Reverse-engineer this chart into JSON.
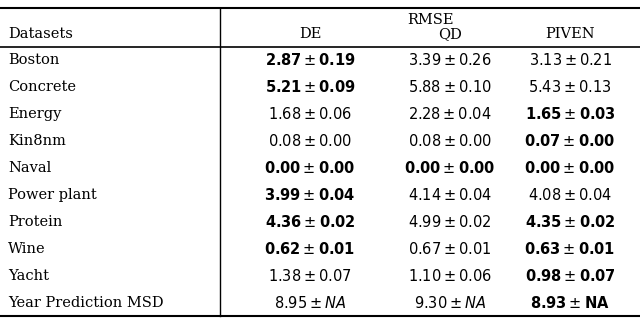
{
  "title": "RMSE",
  "rows": [
    {
      "dataset": "Boston",
      "de": "2.87",
      "de_std": "0.19",
      "de_bold": true,
      "qd": "3.39",
      "qd_std": "0.26",
      "qd_bold": false,
      "piven": "3.13",
      "piven_std": "0.21",
      "piven_bold": false
    },
    {
      "dataset": "Concrete",
      "de": "5.21",
      "de_std": "0.09",
      "de_bold": true,
      "qd": "5.88",
      "qd_std": "0.10",
      "qd_bold": false,
      "piven": "5.43",
      "piven_std": "0.13",
      "piven_bold": false
    },
    {
      "dataset": "Energy",
      "de": "1.68",
      "de_std": "0.06",
      "de_bold": false,
      "qd": "2.28",
      "qd_std": "0.04",
      "qd_bold": false,
      "piven": "1.65",
      "piven_std": "0.03",
      "piven_bold": true
    },
    {
      "dataset": "Kin8nm",
      "de": "0.08",
      "de_std": "0.00",
      "de_bold": false,
      "qd": "0.08",
      "qd_std": "0.00",
      "qd_bold": false,
      "piven": "0.07",
      "piven_std": "0.00",
      "piven_bold": true
    },
    {
      "dataset": "Naval",
      "de": "0.00",
      "de_std": "0.00",
      "de_bold": true,
      "qd": "0.00",
      "qd_std": "0.00",
      "qd_bold": true,
      "piven": "0.00",
      "piven_std": "0.00",
      "piven_bold": true
    },
    {
      "dataset": "Power plant",
      "de": "3.99",
      "de_std": "0.04",
      "de_bold": true,
      "qd": "4.14",
      "qd_std": "0.04",
      "qd_bold": false,
      "piven": "4.08",
      "piven_std": "0.04",
      "piven_bold": false
    },
    {
      "dataset": "Protein",
      "de": "4.36",
      "de_std": "0.02",
      "de_bold": true,
      "qd": "4.99",
      "qd_std": "0.02",
      "qd_bold": false,
      "piven": "4.35",
      "piven_std": "0.02",
      "piven_bold": true
    },
    {
      "dataset": "Wine",
      "de": "0.62",
      "de_std": "0.01",
      "de_bold": true,
      "qd": "0.67",
      "qd_std": "0.01",
      "qd_bold": false,
      "piven": "0.63",
      "piven_std": "0.01",
      "piven_bold": true
    },
    {
      "dataset": "Yacht",
      "de": "1.38",
      "de_std": "0.07",
      "de_bold": false,
      "qd": "1.10",
      "qd_std": "0.06",
      "qd_bold": false,
      "piven": "0.98",
      "piven_std": "0.07",
      "piven_bold": true
    },
    {
      "dataset": "Year Prediction MSD",
      "de": "8.95",
      "de_std": "NA",
      "de_bold": false,
      "qd": "9.30",
      "qd_std": "NA",
      "qd_bold": false,
      "piven": "8.93",
      "piven_std": "NA",
      "piven_bold": true
    }
  ],
  "bg_color": "#ffffff",
  "text_color": "#000000",
  "font_size": 10.5
}
